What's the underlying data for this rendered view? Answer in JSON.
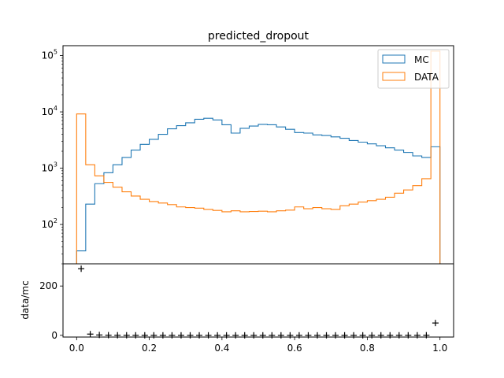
{
  "chart_data": [
    {
      "type": "histogram",
      "title": "predicted_dropout",
      "yscale": "log",
      "ylim": [
        20,
        150000
      ],
      "xlim": [
        -0.0375,
        1.0375
      ],
      "grid": false,
      "legend_placement": "top-right",
      "yticks": [
        {
          "value": 100,
          "base": "10",
          "exp": "2"
        },
        {
          "value": 1000,
          "base": "10",
          "exp": "3"
        },
        {
          "value": 10000,
          "base": "10",
          "exp": "4"
        },
        {
          "value": 100000,
          "base": "10",
          "exp": "5"
        }
      ],
      "bin_edges": [
        0,
        0.025,
        0.05,
        0.075,
        0.1,
        0.125,
        0.15,
        0.175,
        0.2,
        0.225,
        0.25,
        0.275,
        0.3,
        0.325,
        0.35,
        0.375,
        0.4,
        0.425,
        0.45,
        0.475,
        0.5,
        0.525,
        0.55,
        0.575,
        0.6,
        0.625,
        0.65,
        0.675,
        0.7,
        0.725,
        0.75,
        0.775,
        0.8,
        0.825,
        0.85,
        0.875,
        0.9,
        0.925,
        0.95,
        0.975,
        1.0
      ],
      "series": [
        {
          "name": "MC",
          "color": "#1f77b4",
          "values": [
            34,
            230,
            530,
            830,
            1150,
            1550,
            2100,
            2650,
            3250,
            4000,
            5000,
            5700,
            6400,
            7400,
            7700,
            7200,
            5900,
            4200,
            5100,
            5600,
            6000,
            5900,
            5400,
            4900,
            4300,
            4200,
            3900,
            3800,
            3600,
            3400,
            3100,
            2900,
            2700,
            2500,
            2300,
            2100,
            1900,
            1650,
            1550,
            2400
          ]
        },
        {
          "name": "DATA",
          "color": "#ff7f0e",
          "values": [
            9200,
            1150,
            730,
            560,
            460,
            380,
            320,
            280,
            255,
            240,
            225,
            205,
            200,
            195,
            185,
            178,
            168,
            175,
            168,
            170,
            172,
            168,
            175,
            180,
            205,
            190,
            200,
            190,
            185,
            215,
            230,
            250,
            265,
            280,
            305,
            360,
            410,
            490,
            650,
            120000
          ]
        }
      ]
    },
    {
      "type": "scatter",
      "ylabel": "data/mc",
      "xlim": [
        -0.0375,
        1.0375
      ],
      "ylim": [
        -7,
        290
      ],
      "marker": "+",
      "color": "#000000",
      "xticks": [
        "0.0",
        "0.2",
        "0.4",
        "0.6",
        "0.8",
        "1.0"
      ],
      "yticks": [
        "0",
        "200"
      ],
      "x": [
        0.0125,
        0.0375,
        0.0625,
        0.0875,
        0.1125,
        0.1375,
        0.1625,
        0.1875,
        0.2125,
        0.2375,
        0.2625,
        0.2875,
        0.3125,
        0.3375,
        0.3625,
        0.3875,
        0.4125,
        0.4375,
        0.4625,
        0.4875,
        0.5125,
        0.5375,
        0.5625,
        0.5875,
        0.6125,
        0.6375,
        0.6625,
        0.6875,
        0.7125,
        0.7375,
        0.7625,
        0.7875,
        0.8125,
        0.8375,
        0.8625,
        0.8875,
        0.9125,
        0.9375,
        0.9625,
        0.9875
      ],
      "y": [
        270,
        5,
        1.4,
        0.7,
        0.4,
        0.25,
        0.15,
        0.1,
        0.08,
        0.06,
        0.045,
        0.036,
        0.031,
        0.026,
        0.024,
        0.025,
        0.028,
        0.042,
        0.033,
        0.03,
        0.029,
        0.028,
        0.032,
        0.037,
        0.048,
        0.045,
        0.051,
        0.05,
        0.051,
        0.063,
        0.074,
        0.086,
        0.098,
        0.112,
        0.133,
        0.171,
        0.216,
        0.297,
        0.42,
        50
      ]
    }
  ]
}
